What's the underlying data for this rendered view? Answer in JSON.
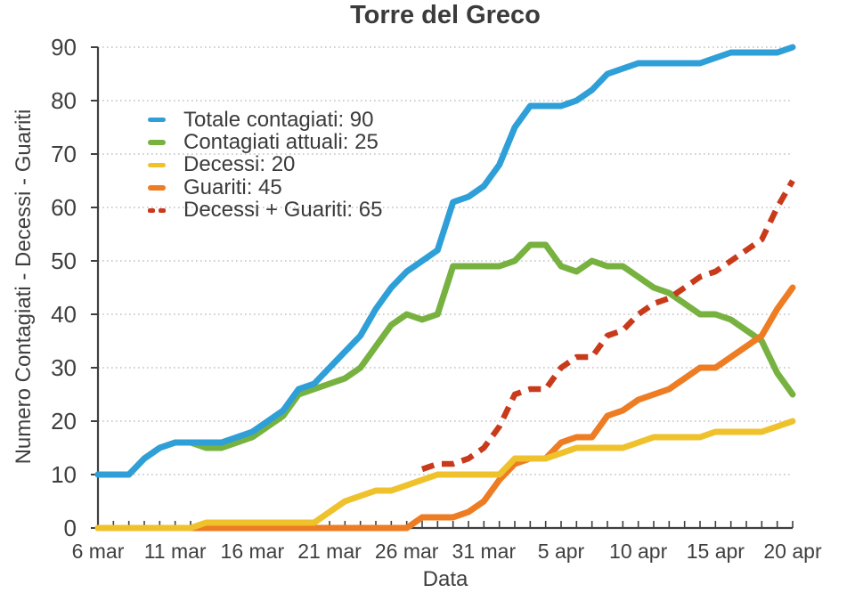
{
  "chart_data": {
    "type": "line",
    "title": "Torre del Greco",
    "xlabel": "Data",
    "ylabel": "Numero Contagiati - Decessi - Guariti",
    "ylim": [
      0,
      90
    ],
    "y_ticks": [
      0,
      10,
      20,
      30,
      40,
      50,
      60,
      70,
      80,
      90
    ],
    "x_ticks": [
      {
        "label": "6 mar",
        "day": 0
      },
      {
        "label": "11 mar",
        "day": 5
      },
      {
        "label": "16 mar",
        "day": 10
      },
      {
        "label": "21 mar",
        "day": 15
      },
      {
        "label": "26 mar",
        "day": 20
      },
      {
        "label": "31 mar",
        "day": 25
      },
      {
        "label": "5 apr",
        "day": 30
      },
      {
        "label": "10 apr",
        "day": 35
      },
      {
        "label": "15 apr",
        "day": 40
      },
      {
        "label": "20 apr",
        "day": 45
      }
    ],
    "n_days": 46,
    "x_start_label": "6 mar",
    "x_end_label": "20 apr",
    "grid": "horizontal dotted",
    "legend_position": "upper left",
    "background_color": "#ffffff",
    "text_color": "#3f3f3f",
    "grid_color": "#b3b3b3",
    "axis_color": "#3f3f3f",
    "series": [
      {
        "id": "totale-contagiati",
        "name": "Totale contagiati: 90",
        "color": "#2f9fd8",
        "style": "solid",
        "start_day": 0,
        "final_value": 90,
        "values": [
          10,
          10,
          10,
          13,
          15,
          16,
          16,
          16,
          16,
          17,
          18,
          20,
          22,
          26,
          27,
          30,
          33,
          36,
          41,
          45,
          48,
          50,
          52,
          61,
          62,
          64,
          68,
          75,
          79,
          79,
          79,
          80,
          82,
          85,
          86,
          87,
          87,
          87,
          87,
          87,
          88,
          89,
          89,
          89,
          89,
          90
        ]
      },
      {
        "id": "contagiati-attuali",
        "name": "Contagiati attuali: 25",
        "color": "#77b240",
        "style": "solid",
        "start_day": 0,
        "final_value": 25,
        "values": [
          10,
          10,
          10,
          13,
          15,
          16,
          16,
          15,
          15,
          16,
          17,
          19,
          21,
          25,
          26,
          27,
          28,
          30,
          34,
          38,
          40,
          39,
          40,
          49,
          49,
          49,
          49,
          50,
          53,
          53,
          49,
          48,
          50,
          49,
          49,
          47,
          45,
          44,
          42,
          40,
          40,
          39,
          37,
          35,
          29,
          25
        ]
      },
      {
        "id": "decessi",
        "name": "Decessi: 20",
        "color": "#efc22c",
        "style": "solid",
        "start_day": 0,
        "final_value": 20,
        "values": [
          0,
          0,
          0,
          0,
          0,
          0,
          0,
          1,
          1,
          1,
          1,
          1,
          1,
          1,
          1,
          3,
          5,
          6,
          7,
          7,
          8,
          9,
          10,
          10,
          10,
          10,
          10,
          13,
          13,
          13,
          14,
          15,
          15,
          15,
          15,
          16,
          17,
          17,
          17,
          17,
          18,
          18,
          18,
          18,
          19,
          20
        ]
      },
      {
        "id": "guariti",
        "name": "Guariti: 45",
        "color": "#ee7c22",
        "style": "solid",
        "start_day": 0,
        "final_value": 45,
        "values": [
          0,
          0,
          0,
          0,
          0,
          0,
          0,
          0,
          0,
          0,
          0,
          0,
          0,
          0,
          0,
          0,
          0,
          0,
          0,
          0,
          0,
          2,
          2,
          2,
          3,
          5,
          9,
          12,
          13,
          13,
          16,
          17,
          17,
          21,
          22,
          24,
          25,
          26,
          28,
          30,
          30,
          32,
          34,
          36,
          41,
          45
        ]
      },
      {
        "id": "decessi-guariti",
        "name": "Decessi + Guariti: 65",
        "color": "#c93a1b",
        "style": "dashed",
        "start_day": 21,
        "final_value": 65,
        "values": [
          11,
          12,
          12,
          13,
          15,
          19,
          25,
          26,
          26,
          30,
          32,
          32,
          36,
          37,
          40,
          42,
          43,
          45,
          47,
          48,
          50,
          52,
          54,
          60,
          65
        ]
      }
    ]
  }
}
